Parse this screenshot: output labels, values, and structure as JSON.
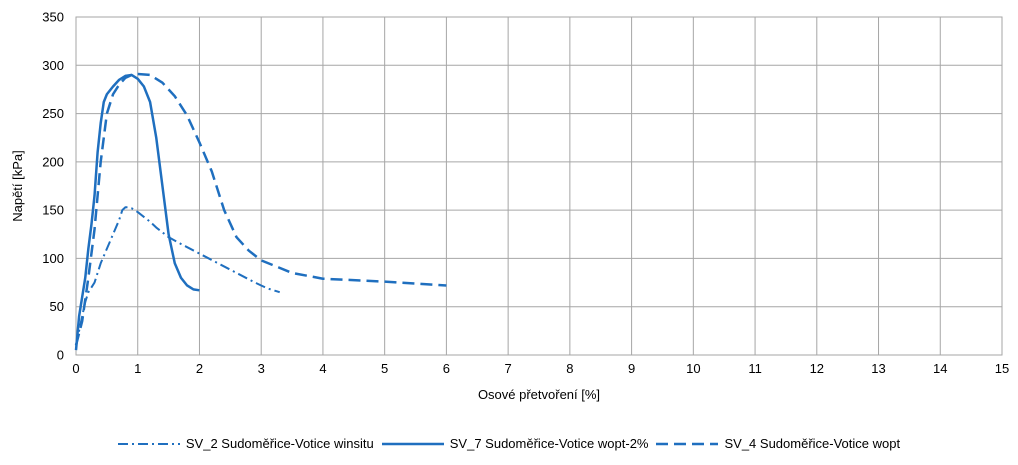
{
  "chart_data": {
    "type": "line",
    "title": "",
    "xlabel": "Osové přetvoření [%]",
    "ylabel": "Napětí [kPa]",
    "xlim": [
      0,
      15
    ],
    "ylim": [
      0,
      350
    ],
    "x_ticks": [
      "0",
      "1",
      "2",
      "3",
      "4",
      "5",
      "6",
      "7",
      "8",
      "9",
      "10",
      "11",
      "12",
      "13",
      "14",
      "15"
    ],
    "y_ticks": [
      "0",
      "50",
      "100",
      "150",
      "200",
      "250",
      "300",
      "350"
    ],
    "grid": true,
    "legend_position": "bottom",
    "line_color": "#1f6fbf",
    "series": [
      {
        "name": "SV_2 Sudoměřice-Votice winsitu",
        "dash": "dash-dot",
        "points": [
          [
            0,
            10
          ],
          [
            0.05,
            25
          ],
          [
            0.1,
            40
          ],
          [
            0.15,
            55
          ],
          [
            0.2,
            65
          ],
          [
            0.25,
            70
          ],
          [
            0.3,
            75
          ],
          [
            0.4,
            95
          ],
          [
            0.5,
            110
          ],
          [
            0.6,
            125
          ],
          [
            0.7,
            140
          ],
          [
            0.75,
            150
          ],
          [
            0.8,
            153
          ],
          [
            0.85,
            153
          ],
          [
            0.9,
            152
          ],
          [
            1.0,
            148
          ],
          [
            1.1,
            143
          ],
          [
            1.2,
            138
          ],
          [
            1.3,
            132
          ],
          [
            1.5,
            122
          ],
          [
            1.7,
            115
          ],
          [
            2.0,
            105
          ],
          [
            2.3,
            95
          ],
          [
            2.6,
            85
          ],
          [
            2.9,
            75
          ],
          [
            3.0,
            72
          ],
          [
            3.1,
            69
          ],
          [
            3.3,
            65
          ]
        ]
      },
      {
        "name": "SV_7 Sudoměřice-Votice wopt-2%",
        "dash": "solid",
        "points": [
          [
            0,
            5
          ],
          [
            0.05,
            40
          ],
          [
            0.1,
            60
          ],
          [
            0.15,
            80
          ],
          [
            0.2,
            110
          ],
          [
            0.25,
            135
          ],
          [
            0.3,
            165
          ],
          [
            0.35,
            210
          ],
          [
            0.4,
            240
          ],
          [
            0.45,
            262
          ],
          [
            0.5,
            270
          ],
          [
            0.6,
            278
          ],
          [
            0.7,
            285
          ],
          [
            0.8,
            289
          ],
          [
            0.9,
            290
          ],
          [
            1.0,
            286
          ],
          [
            1.1,
            278
          ],
          [
            1.2,
            262
          ],
          [
            1.3,
            225
          ],
          [
            1.4,
            175
          ],
          [
            1.5,
            125
          ],
          [
            1.6,
            95
          ],
          [
            1.7,
            80
          ],
          [
            1.8,
            72
          ],
          [
            1.9,
            68
          ],
          [
            2.0,
            67
          ]
        ]
      },
      {
        "name": "SV_4 Sudoměřice-Votice wopt",
        "dash": "dashed",
        "points": [
          [
            0,
            10
          ],
          [
            0.1,
            35
          ],
          [
            0.2,
            80
          ],
          [
            0.3,
            130
          ],
          [
            0.4,
            200
          ],
          [
            0.5,
            250
          ],
          [
            0.6,
            270
          ],
          [
            0.7,
            280
          ],
          [
            0.8,
            287
          ],
          [
            0.9,
            290
          ],
          [
            1.0,
            291
          ],
          [
            1.2,
            290
          ],
          [
            1.4,
            282
          ],
          [
            1.6,
            268
          ],
          [
            1.8,
            248
          ],
          [
            2.0,
            220
          ],
          [
            2.2,
            190
          ],
          [
            2.4,
            150
          ],
          [
            2.6,
            122
          ],
          [
            2.8,
            108
          ],
          [
            3.0,
            98
          ],
          [
            3.5,
            85
          ],
          [
            4.0,
            79
          ],
          [
            5.0,
            76
          ],
          [
            6.0,
            72
          ]
        ]
      }
    ]
  }
}
